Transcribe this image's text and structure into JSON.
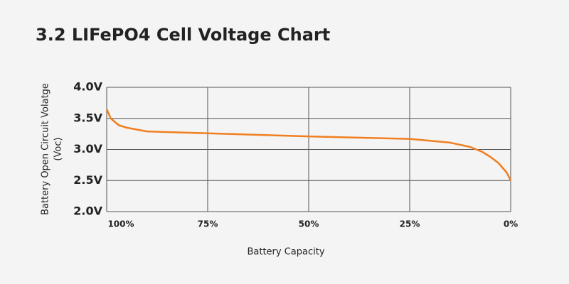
{
  "chart_data": {
    "type": "line",
    "title": "3.2 LIFePO4 Cell Voltage Chart",
    "xlabel": "Battery Capacity",
    "ylabel": [
      "Battery Open Circuit Volatge",
      "(Voc)"
    ],
    "x": [
      100,
      99,
      97,
      95,
      90,
      80,
      75,
      50,
      25,
      20,
      15,
      10,
      7,
      5,
      3,
      1,
      0
    ],
    "series": [
      {
        "color": "#f07f1f",
        "values": [
          3.65,
          3.5,
          3.39,
          3.35,
          3.29,
          3.27,
          3.26,
          3.21,
          3.17,
          3.14,
          3.11,
          3.04,
          2.96,
          2.88,
          2.78,
          2.63,
          2.5
        ]
      }
    ],
    "xlim": [
      100,
      0
    ],
    "xticks": [
      {
        "value": 100,
        "label": "100%"
      },
      {
        "value": 75,
        "label": "75%"
      },
      {
        "value": 50,
        "label": "50%"
      },
      {
        "value": 25,
        "label": "25%"
      },
      {
        "value": 0,
        "label": "0%"
      }
    ],
    "ylim": [
      2,
      4
    ],
    "yticks": [
      {
        "value": 2,
        "label": "2.0V"
      },
      {
        "value": 2.5,
        "label": "2.5V"
      },
      {
        "value": 3,
        "label": "3.0V"
      },
      {
        "value": 3.5,
        "label": "3.5V"
      },
      {
        "value": 4,
        "label": "4.0V"
      }
    ],
    "grid": true
  }
}
